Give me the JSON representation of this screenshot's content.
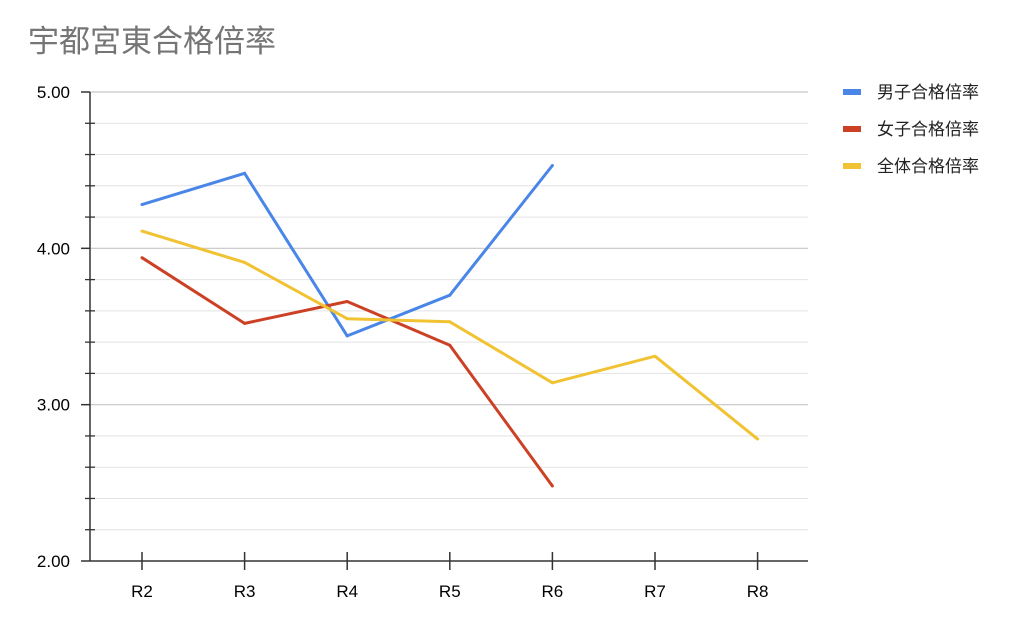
{
  "chart_data": {
    "type": "line",
    "title": "宇都宮東合格倍率",
    "categories": [
      "R2",
      "R3",
      "R4",
      "R5",
      "R6",
      "R7",
      "R8"
    ],
    "ylim": [
      2.0,
      5.0
    ],
    "yticks": [
      "5.00",
      "4.00",
      "3.00",
      "2.00"
    ],
    "ytick_values": [
      5.0,
      4.0,
      3.0,
      2.0
    ],
    "minor_grid_step": 0.2,
    "grid": true,
    "legend_position": "right",
    "series": [
      {
        "name": "男子合格倍率",
        "color": "#4a86e8",
        "values": [
          4.28,
          4.48,
          3.44,
          3.7,
          4.53,
          null,
          null
        ]
      },
      {
        "name": "女子合格倍率",
        "color": "#cc4125",
        "values": [
          3.94,
          3.52,
          3.66,
          3.38,
          2.48,
          null,
          null
        ]
      },
      {
        "name": "全体合格倍率",
        "color": "#f1c232",
        "values": [
          4.11,
          3.91,
          3.55,
          3.53,
          3.14,
          3.31,
          2.78
        ]
      }
    ]
  }
}
